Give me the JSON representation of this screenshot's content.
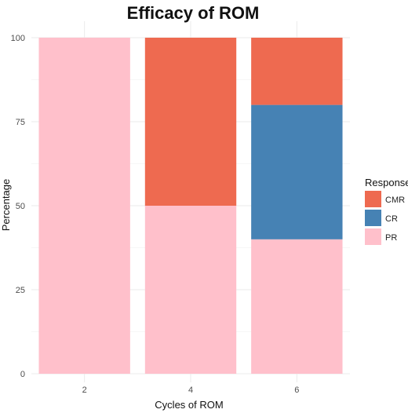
{
  "chart_data": {
    "type": "bar",
    "stacked": true,
    "title": "Efficacy of ROM",
    "xlabel": "Cycles of ROM",
    "ylabel": "Percentage",
    "categories": [
      "2",
      "4",
      "6"
    ],
    "ylim": [
      0,
      100
    ],
    "yticks": [
      "0",
      "25",
      "50",
      "75",
      "100"
    ],
    "grid": true,
    "legend": {
      "title": "Response",
      "position": "right"
    },
    "series": [
      {
        "name": "PR",
        "color": "#FFC0CB",
        "values": [
          100,
          50,
          40
        ]
      },
      {
        "name": "CR",
        "color": "#4682B4",
        "values": [
          0,
          0,
          40
        ]
      },
      {
        "name": "CMR",
        "color": "#EE6A50",
        "values": [
          0,
          50,
          20
        ]
      }
    ],
    "legend_order": [
      "CMR",
      "CR",
      "PR"
    ]
  }
}
